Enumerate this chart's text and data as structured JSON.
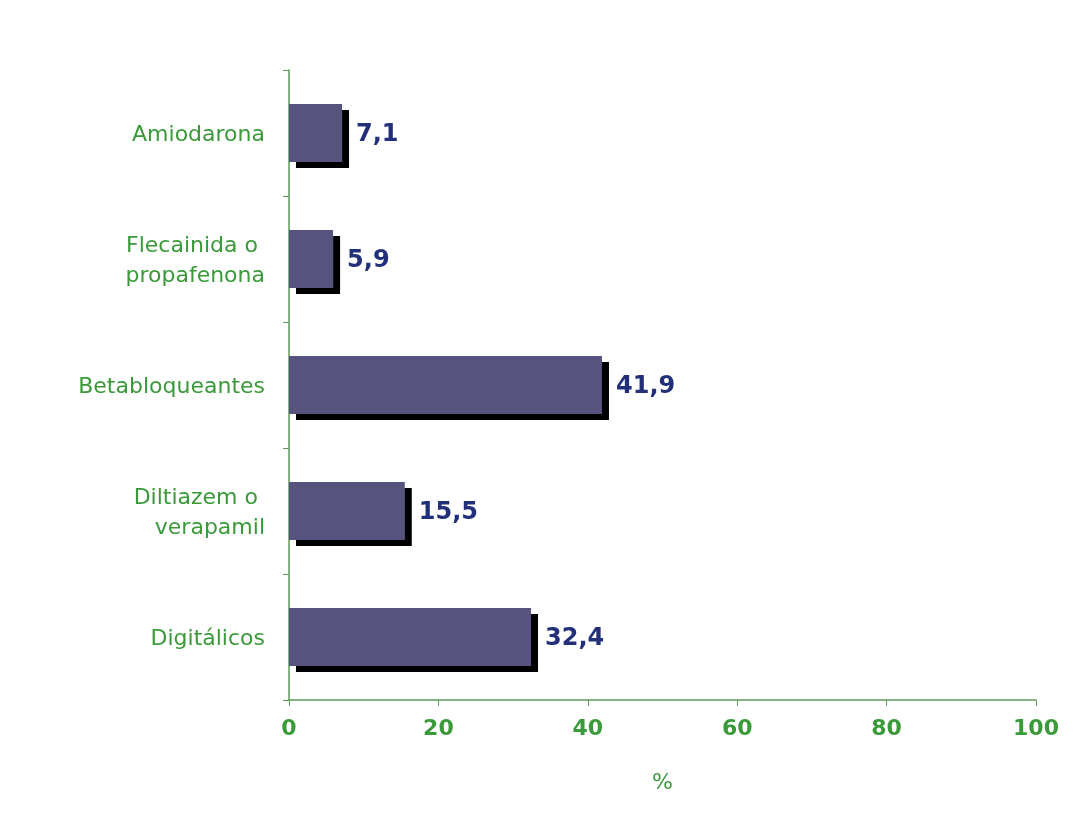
{
  "chart_data": {
    "type": "bar",
    "orientation": "horizontal",
    "xlabel": "%",
    "categories": [
      "Amiodarona",
      "Flecainida o propafenona",
      "Betabloqueantes",
      "Diltiazem o verapamil",
      "Digitálicos"
    ],
    "values": [
      7.1,
      5.9,
      41.9,
      15.5,
      32.4
    ],
    "value_labels": [
      "7,1",
      "5,9",
      "41,9",
      "15,5",
      "32,4"
    ],
    "color": "#57537f",
    "xlim": [
      0,
      100
    ],
    "xticks": [
      0,
      20,
      40,
      60,
      80,
      100
    ],
    "grid": false
  }
}
